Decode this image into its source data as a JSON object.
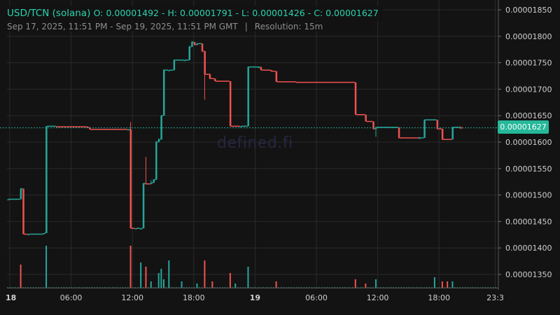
{
  "header": {
    "pair": "USD/TCN (solana)",
    "ohlc": "O: 0.00001492 - H: 0.00001791 - L: 0.00001426 - C: 0.00001627",
    "range": "Sep 17, 2025, 11:51 PM - Sep 19, 2025, 11:51 PM GMT",
    "separator": "|",
    "resolution": "Resolution: 15m"
  },
  "watermark": "defined.fi",
  "last_price_label": "0.00001627",
  "colors": {
    "up": "#26a69a",
    "down": "#ef5350",
    "background": "#131313",
    "grid": "#2a2a2a",
    "price_line": "#26a69a"
  },
  "chart_data": {
    "type": "candlestick",
    "title": "USD/TCN (solana)",
    "resolution": "15m",
    "y_ticks": [
      1.85e-05,
      1.8e-05,
      1.75e-05,
      1.7e-05,
      1.65e-05,
      1.6e-05,
      1.55e-05,
      1.5e-05,
      1.45e-05,
      1.4e-05,
      1.35e-05
    ],
    "y_tick_labels": [
      "0.00001850",
      "0.00001800",
      "0.00001750",
      "0.00001700",
      "0.00001650",
      "0.00001600",
      "0.00001550",
      "0.00001500",
      "0.00001450",
      "0.00001400",
      "0.00001350"
    ],
    "ylim": [
      1.32e-05,
      1.86e-05
    ],
    "x_tick_labels": [
      {
        "label": "18",
        "hours": 0,
        "bold": true
      },
      {
        "label": "06:00",
        "hours": 6,
        "bold": false
      },
      {
        "label": "12:00",
        "hours": 12,
        "bold": false
      },
      {
        "label": "18:00",
        "hours": 18,
        "bold": false
      },
      {
        "label": "19",
        "hours": 24,
        "bold": true
      },
      {
        "label": "06:00",
        "hours": 30,
        "bold": false
      },
      {
        "label": "12:00",
        "hours": 36,
        "bold": false
      },
      {
        "label": "18:00",
        "hours": 42,
        "bold": false
      },
      {
        "label": "23:3",
        "hours": 47.5,
        "bold": false
      }
    ],
    "last_price": 1.627e-05,
    "candles": [
      {
        "t": -0.25,
        "o": 1.492e-05,
        "h": 1.492e-05,
        "l": 1.492e-05,
        "c": 1.492e-05
      },
      {
        "t": 1.0,
        "o": 1.492e-05,
        "h": 1.513e-05,
        "l": 1.492e-05,
        "c": 1.512e-05
      },
      {
        "t": 1.25,
        "o": 1.512e-05,
        "h": 1.512e-05,
        "l": 1.426e-05,
        "c": 1.426e-05
      },
      {
        "t": 1.75,
        "o": 1.426e-05,
        "h": 1.426e-05,
        "l": 1.426e-05,
        "c": 1.426e-05
      },
      {
        "t": 3.25,
        "o": 1.426e-05,
        "h": 1.428e-05,
        "l": 1.426e-05,
        "c": 1.428e-05
      },
      {
        "t": 3.5,
        "o": 1.428e-05,
        "h": 1.63e-05,
        "l": 1.428e-05,
        "c": 1.63e-05
      },
      {
        "t": 4.5,
        "o": 1.63e-05,
        "h": 1.63e-05,
        "l": 1.629e-05,
        "c": 1.629e-05
      },
      {
        "t": 7.5,
        "o": 1.629e-05,
        "h": 1.63e-05,
        "l": 1.627e-05,
        "c": 1.628e-05
      },
      {
        "t": 7.75,
        "o": 1.628e-05,
        "h": 1.628e-05,
        "l": 1.624e-05,
        "c": 1.624e-05
      },
      {
        "t": 11.5,
        "o": 1.624e-05,
        "h": 1.624e-05,
        "l": 1.624e-05,
        "c": 1.624e-05
      },
      {
        "t": 11.75,
        "o": 1.624e-05,
        "h": 1.638e-05,
        "l": 1.437e-05,
        "c": 1.437e-05
      },
      {
        "t": 12.25,
        "o": 1.437e-05,
        "h": 1.437e-05,
        "l": 1.437e-05,
        "c": 1.437e-05
      },
      {
        "t": 12.75,
        "o": 1.437e-05,
        "h": 1.437e-05,
        "l": 1.437e-05,
        "c": 1.437e-05
      },
      {
        "t": 13.0,
        "o": 1.437e-05,
        "h": 1.523e-05,
        "l": 1.437e-05,
        "c": 1.522e-05
      },
      {
        "t": 13.25,
        "o": 1.522e-05,
        "h": 1.572e-05,
        "l": 1.52e-05,
        "c": 1.521e-05
      },
      {
        "t": 13.75,
        "o": 1.521e-05,
        "h": 1.528e-05,
        "l": 1.52e-05,
        "c": 1.523e-05
      },
      {
        "t": 14.0,
        "o": 1.523e-05,
        "h": 1.53e-05,
        "l": 1.523e-05,
        "c": 1.529e-05
      },
      {
        "t": 14.25,
        "o": 1.529e-05,
        "h": 1.602e-05,
        "l": 1.529e-05,
        "c": 1.6e-05
      },
      {
        "t": 14.5,
        "o": 1.6e-05,
        "h": 1.607e-05,
        "l": 1.6e-05,
        "c": 1.605e-05
      },
      {
        "t": 14.75,
        "o": 1.605e-05,
        "h": 1.651e-05,
        "l": 1.605e-05,
        "c": 1.65e-05
      },
      {
        "t": 15.0,
        "o": 1.65e-05,
        "h": 1.738e-05,
        "l": 1.65e-05,
        "c": 1.736e-05
      },
      {
        "t": 15.5,
        "o": 1.736e-05,
        "h": 1.736e-05,
        "l": 1.736e-05,
        "c": 1.736e-05
      },
      {
        "t": 16.0,
        "o": 1.736e-05,
        "h": 1.756e-05,
        "l": 1.736e-05,
        "c": 1.755e-05
      },
      {
        "t": 17.0,
        "o": 1.755e-05,
        "h": 1.755e-05,
        "l": 1.755e-05,
        "c": 1.755e-05
      },
      {
        "t": 17.5,
        "o": 1.755e-05,
        "h": 1.782e-05,
        "l": 1.755e-05,
        "c": 1.78e-05
      },
      {
        "t": 17.75,
        "o": 1.78e-05,
        "h": 1.791e-05,
        "l": 1.78e-05,
        "c": 1.789e-05
      },
      {
        "t": 18.0,
        "o": 1.789e-05,
        "h": 1.789e-05,
        "l": 1.783e-05,
        "c": 1.784e-05
      },
      {
        "t": 18.25,
        "o": 1.784e-05,
        "h": 1.787e-05,
        "l": 1.783e-05,
        "c": 1.786e-05
      },
      {
        "t": 18.75,
        "o": 1.786e-05,
        "h": 1.787e-05,
        "l": 1.77e-05,
        "c": 1.772e-05
      },
      {
        "t": 19.0,
        "o": 1.772e-05,
        "h": 1.772e-05,
        "l": 1.68e-05,
        "c": 1.728e-05
      },
      {
        "t": 19.5,
        "o": 1.728e-05,
        "h": 1.73e-05,
        "l": 1.719e-05,
        "c": 1.72e-05
      },
      {
        "t": 20.0,
        "o": 1.72e-05,
        "h": 1.72e-05,
        "l": 1.715e-05,
        "c": 1.715e-05
      },
      {
        "t": 21.5,
        "o": 1.715e-05,
        "h": 1.715e-05,
        "l": 1.63e-05,
        "c": 1.63e-05
      },
      {
        "t": 22.5,
        "o": 1.63e-05,
        "h": 1.63e-05,
        "l": 1.63e-05,
        "c": 1.63e-05
      },
      {
        "t": 23.25,
        "o": 1.63e-05,
        "h": 1.743e-05,
        "l": 1.63e-05,
        "c": 1.742e-05
      },
      {
        "t": 24.25,
        "o": 1.742e-05,
        "h": 1.743e-05,
        "l": 1.741e-05,
        "c": 1.742e-05
      },
      {
        "t": 24.5,
        "o": 1.742e-05,
        "h": 1.742e-05,
        "l": 1.736e-05,
        "c": 1.736e-05
      },
      {
        "t": 25.5,
        "o": 1.736e-05,
        "h": 1.736e-05,
        "l": 1.733e-05,
        "c": 1.734e-05
      },
      {
        "t": 26.0,
        "o": 1.734e-05,
        "h": 1.734e-05,
        "l": 1.714e-05,
        "c": 1.714e-05
      },
      {
        "t": 28.0,
        "o": 1.714e-05,
        "h": 1.714e-05,
        "l": 1.713e-05,
        "c": 1.713e-05
      },
      {
        "t": 33.75,
        "o": 1.713e-05,
        "h": 1.713e-05,
        "l": 1.652e-05,
        "c": 1.652e-05
      },
      {
        "t": 34.75,
        "o": 1.652e-05,
        "h": 1.652e-05,
        "l": 1.639e-05,
        "c": 1.639e-05
      },
      {
        "t": 35.5,
        "o": 1.639e-05,
        "h": 1.639e-05,
        "l": 1.624e-05,
        "c": 1.625e-05
      },
      {
        "t": 35.75,
        "o": 1.625e-05,
        "h": 1.629e-05,
        "l": 1.61e-05,
        "c": 1.628e-05
      },
      {
        "t": 38.0,
        "o": 1.628e-05,
        "h": 1.628e-05,
        "l": 1.607e-05,
        "c": 1.608e-05
      },
      {
        "t": 40.0,
        "o": 1.608e-05,
        "h": 1.61e-05,
        "l": 1.607e-05,
        "c": 1.608e-05
      },
      {
        "t": 40.5,
        "o": 1.608e-05,
        "h": 1.643e-05,
        "l": 1.608e-05,
        "c": 1.642e-05
      },
      {
        "t": 41.75,
        "o": 1.642e-05,
        "h": 1.642e-05,
        "l": 1.624e-05,
        "c": 1.625e-05
      },
      {
        "t": 42.25,
        "o": 1.625e-05,
        "h": 1.625e-05,
        "l": 1.604e-05,
        "c": 1.605e-05
      },
      {
        "t": 43.25,
        "o": 1.605e-05,
        "h": 1.629e-05,
        "l": 1.605e-05,
        "c": 1.628e-05
      },
      {
        "t": 44.0,
        "o": 1.628e-05,
        "h": 1.63e-05,
        "l": 1.625e-05,
        "c": 1.627e-05
      }
    ],
    "volume_bars": [
      {
        "t": 1.0,
        "v": 0.55,
        "up": false
      },
      {
        "t": 3.5,
        "v": 1.0,
        "up": true
      },
      {
        "t": 11.75,
        "v": 1.0,
        "up": false
      },
      {
        "t": 12.75,
        "v": 0.6,
        "up": true
      },
      {
        "t": 13.25,
        "v": 0.5,
        "up": false
      },
      {
        "t": 13.75,
        "v": 0.15,
        "up": true
      },
      {
        "t": 14.5,
        "v": 0.35,
        "up": true
      },
      {
        "t": 14.75,
        "v": 0.45,
        "up": true
      },
      {
        "t": 15.0,
        "v": 0.2,
        "up": true
      },
      {
        "t": 15.5,
        "v": 0.65,
        "up": true
      },
      {
        "t": 16.75,
        "v": 0.15,
        "up": true
      },
      {
        "t": 18.25,
        "v": 0.1,
        "up": true
      },
      {
        "t": 19.0,
        "v": 0.65,
        "up": false
      },
      {
        "t": 19.75,
        "v": 0.15,
        "up": false
      },
      {
        "t": 21.5,
        "v": 0.35,
        "up": false
      },
      {
        "t": 22.0,
        "v": 0.1,
        "up": true
      },
      {
        "t": 23.25,
        "v": 0.5,
        "up": true
      },
      {
        "t": 26.0,
        "v": 0.15,
        "up": false
      },
      {
        "t": 33.75,
        "v": 0.2,
        "up": false
      },
      {
        "t": 34.75,
        "v": 0.1,
        "up": false
      },
      {
        "t": 35.75,
        "v": 0.2,
        "up": true
      },
      {
        "t": 41.5,
        "v": 0.25,
        "up": true
      },
      {
        "t": 42.25,
        "v": 0.15,
        "up": false
      },
      {
        "t": 42.75,
        "v": 0.15,
        "up": false
      },
      {
        "t": 43.25,
        "v": 0.15,
        "up": true
      }
    ]
  }
}
